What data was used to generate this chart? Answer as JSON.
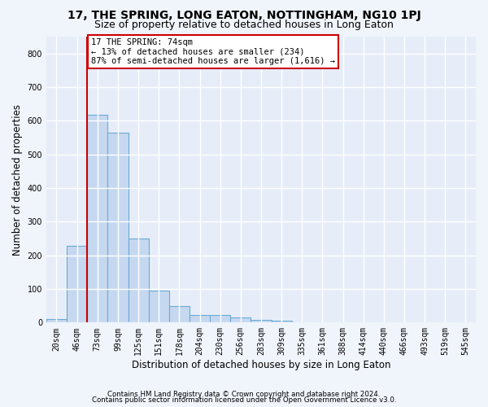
{
  "title": "17, THE SPRING, LONG EATON, NOTTINGHAM, NG10 1PJ",
  "subtitle": "Size of property relative to detached houses in Long Eaton",
  "xlabel": "Distribution of detached houses by size in Long Eaton",
  "ylabel": "Number of detached properties",
  "bar_labels": [
    "20sqm",
    "46sqm",
    "73sqm",
    "99sqm",
    "125sqm",
    "151sqm",
    "178sqm",
    "204sqm",
    "230sqm",
    "256sqm",
    "283sqm",
    "309sqm",
    "335sqm",
    "361sqm",
    "388sqm",
    "414sqm",
    "440sqm",
    "466sqm",
    "493sqm",
    "519sqm",
    "545sqm"
  ],
  "bar_values": [
    10,
    228,
    617,
    565,
    250,
    95,
    48,
    22,
    22,
    15,
    8,
    5,
    0,
    0,
    0,
    0,
    0,
    0,
    0,
    0,
    0
  ],
  "bar_color": "#c5d8f0",
  "bar_edge_color": "#6aaad4",
  "property_bar_index": 2,
  "annotation_line_color": "#cc0000",
  "annotation_box_text": "17 THE SPRING: 74sqm\n← 13% of detached houses are smaller (234)\n87% of semi-detached houses are larger (1,616) →",
  "annotation_box_color": "#cc0000",
  "annotation_box_fill": "white",
  "footer_line1": "Contains HM Land Registry data © Crown copyright and database right 2024.",
  "footer_line2": "Contains public sector information licensed under the Open Government Licence v3.0.",
  "ylim": [
    0,
    850
  ],
  "yticks": [
    0,
    100,
    200,
    300,
    400,
    500,
    600,
    700,
    800
  ],
  "background_color": "#f0f4fb",
  "plot_bg_color": "#e6edf8",
  "grid_color": "#ffffff",
  "title_fontsize": 10,
  "subtitle_fontsize": 9,
  "tick_fontsize": 7,
  "ylabel_fontsize": 8.5,
  "xlabel_fontsize": 8.5,
  "footer_fontsize": 6.2
}
